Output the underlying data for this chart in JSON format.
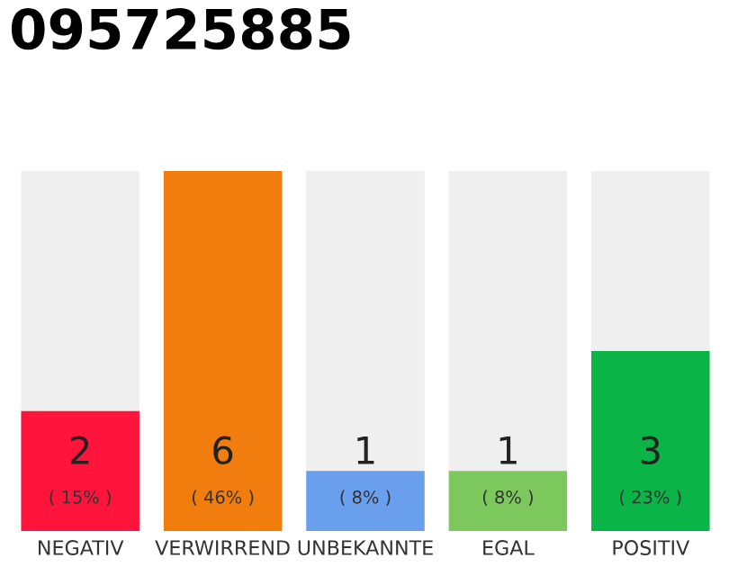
{
  "chart_data": {
    "type": "bar",
    "title": "095725885",
    "categories": [
      "NEGATIV",
      "VERWIRREND",
      "UNBEKANNTE",
      "EGAL",
      "POSITIV"
    ],
    "values": [
      2,
      6,
      1,
      1,
      3
    ],
    "colors": [
      "#ff143c",
      "#f07d0d",
      "#6a9fee",
      "#7cc85c",
      "#0bb446"
    ],
    "data_labels": true,
    "annotations": [
      "( 15% )",
      "( 46% )",
      "( 8% )",
      "( 8% )",
      "( 23% )"
    ],
    "tick_labels": "x"
  }
}
